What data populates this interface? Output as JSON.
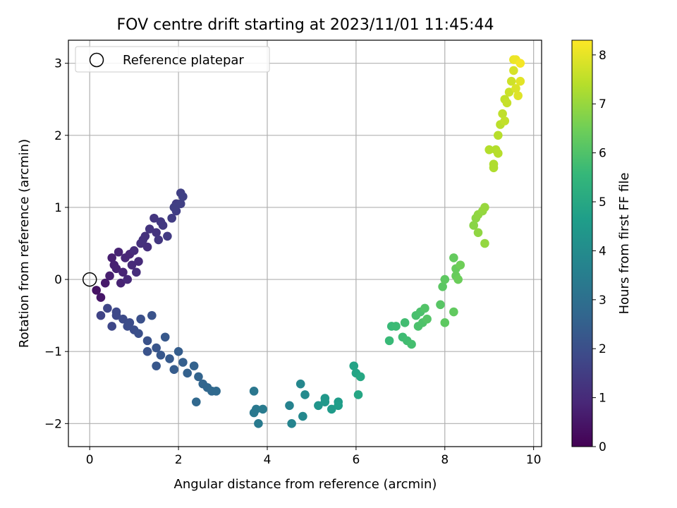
{
  "chart_data": {
    "type": "scatter",
    "title": "FOV centre drift starting at 2023/11/01 11:45:44",
    "xlabel": "Angular distance from reference (arcmin)",
    "ylabel": "Rotation from reference (arcmin)",
    "xlim": [
      -0.48,
      10.18
    ],
    "ylim": [
      -2.32,
      3.32
    ],
    "xticks": [
      0,
      2,
      4,
      6,
      8,
      10
    ],
    "yticks": [
      -2,
      -1,
      0,
      1,
      2,
      3
    ],
    "grid": true,
    "legend": {
      "placement": "top-left",
      "entries": [
        "Reference platepar"
      ]
    },
    "reference_point": {
      "x": 0,
      "y": 0
    },
    "colorbar": {
      "label": "Hours from first FF file",
      "range": [
        0,
        8.3
      ],
      "ticks": [
        0,
        1,
        2,
        3,
        4,
        5,
        6,
        7,
        8
      ],
      "colormap": "viridis"
    },
    "colormap_stops": [
      "#440154",
      "#482878",
      "#3e4989",
      "#31688e",
      "#26828e",
      "#1f9e89",
      "#35b779",
      "#6ece58",
      "#b5de2b",
      "#fde725"
    ],
    "columns": [
      "x",
      "y",
      "hours"
    ],
    "points": [
      [
        0.15,
        -0.15,
        0.4
      ],
      [
        0.25,
        -0.25,
        0.5
      ],
      [
        0.35,
        -0.05,
        0.6
      ],
      [
        0.45,
        0.05,
        0.7
      ],
      [
        0.55,
        0.2,
        0.75
      ],
      [
        0.65,
        0.38,
        0.8
      ],
      [
        0.75,
        0.1,
        0.85
      ],
      [
        0.8,
        0.3,
        0.9
      ],
      [
        0.85,
        0.0,
        0.95
      ],
      [
        0.95,
        0.2,
        1.0
      ],
      [
        1.0,
        0.4,
        1.05
      ],
      [
        1.05,
        0.1,
        1.1
      ],
      [
        1.15,
        0.5,
        1.15
      ],
      [
        1.25,
        0.6,
        1.2
      ],
      [
        1.35,
        0.7,
        1.25
      ],
      [
        1.45,
        0.85,
        1.3
      ],
      [
        1.55,
        0.55,
        1.35
      ],
      [
        1.65,
        0.75,
        1.4
      ],
      [
        1.75,
        0.6,
        1.45
      ],
      [
        1.85,
        0.85,
        1.5
      ],
      [
        1.95,
        0.95,
        1.55
      ],
      [
        2.05,
        1.2,
        1.6
      ],
      [
        2.1,
        1.15,
        1.62
      ],
      [
        1.9,
        1.0,
        1.58
      ],
      [
        2.05,
        1.05,
        1.6
      ],
      [
        0.6,
        0.15,
        0.78
      ],
      [
        0.9,
        0.35,
        0.9
      ],
      [
        1.1,
        0.25,
        1.0
      ],
      [
        1.3,
        0.45,
        1.12
      ],
      [
        1.5,
        0.65,
        1.25
      ],
      [
        0.7,
        -0.05,
        0.8
      ],
      [
        0.5,
        0.3,
        0.72
      ],
      [
        1.2,
        0.55,
        1.18
      ],
      [
        1.6,
        0.8,
        1.38
      ],
      [
        1.95,
        1.05,
        1.52
      ],
      [
        0.25,
        -0.5,
        1.7
      ],
      [
        0.4,
        -0.4,
        1.75
      ],
      [
        0.5,
        -0.65,
        1.8
      ],
      [
        0.6,
        -0.45,
        1.85
      ],
      [
        0.75,
        -0.55,
        1.9
      ],
      [
        0.9,
        -0.6,
        1.95
      ],
      [
        1.0,
        -0.7,
        2.0
      ],
      [
        1.15,
        -0.55,
        2.05
      ],
      [
        1.3,
        -0.85,
        2.1
      ],
      [
        1.4,
        -0.5,
        2.15
      ],
      [
        1.5,
        -0.95,
        2.2
      ],
      [
        1.6,
        -1.05,
        2.25
      ],
      [
        1.7,
        -0.8,
        2.3
      ],
      [
        1.8,
        -1.1,
        2.35
      ],
      [
        1.9,
        -1.25,
        2.4
      ],
      [
        2.0,
        -1.0,
        2.45
      ],
      [
        2.1,
        -1.15,
        2.5
      ],
      [
        2.2,
        -1.3,
        2.55
      ],
      [
        2.35,
        -1.2,
        2.6
      ],
      [
        2.45,
        -1.35,
        2.65
      ],
      [
        2.55,
        -1.45,
        2.7
      ],
      [
        2.65,
        -1.5,
        2.75
      ],
      [
        2.75,
        -1.55,
        2.8
      ],
      [
        2.85,
        -1.55,
        2.85
      ],
      [
        2.4,
        -1.7,
        2.8
      ],
      [
        1.5,
        -1.2,
        2.25
      ],
      [
        1.3,
        -1.0,
        2.15
      ],
      [
        1.1,
        -0.75,
        2.05
      ],
      [
        0.85,
        -0.65,
        1.95
      ],
      [
        0.6,
        -0.5,
        1.85
      ],
      [
        3.7,
        -1.55,
        3.3
      ],
      [
        3.75,
        -1.8,
        3.35
      ],
      [
        3.8,
        -2.0,
        3.4
      ],
      [
        3.9,
        -1.8,
        3.45
      ],
      [
        3.7,
        -1.85,
        3.35
      ],
      [
        4.5,
        -1.75,
        3.7
      ],
      [
        4.55,
        -2.0,
        3.75
      ],
      [
        4.75,
        -1.45,
        3.85
      ],
      [
        4.8,
        -1.9,
        3.9
      ],
      [
        4.85,
        -1.6,
        3.95
      ],
      [
        5.15,
        -1.75,
        4.3
      ],
      [
        5.3,
        -1.7,
        4.4
      ],
      [
        5.45,
        -1.8,
        4.5
      ],
      [
        5.6,
        -1.75,
        4.6
      ],
      [
        5.95,
        -1.2,
        4.8
      ],
      [
        6.0,
        -1.3,
        4.85
      ],
      [
        6.05,
        -1.6,
        4.9
      ],
      [
        6.1,
        -1.35,
        4.95
      ],
      [
        5.3,
        -1.65,
        4.4
      ],
      [
        5.6,
        -1.7,
        4.55
      ],
      [
        6.8,
        -0.65,
        5.6
      ],
      [
        6.9,
        -0.65,
        5.65
      ],
      [
        7.05,
        -0.8,
        5.7
      ],
      [
        7.15,
        -0.85,
        5.75
      ],
      [
        7.25,
        -0.9,
        5.8
      ],
      [
        7.1,
        -0.6,
        5.75
      ],
      [
        7.35,
        -0.5,
        5.85
      ],
      [
        7.45,
        -0.45,
        5.9
      ],
      [
        7.5,
        -0.6,
        5.95
      ],
      [
        7.55,
        -0.4,
        6.0
      ],
      [
        7.6,
        -0.55,
        6.05
      ],
      [
        7.9,
        -0.35,
        6.1
      ],
      [
        7.95,
        -0.1,
        6.15
      ],
      [
        8.0,
        -0.6,
        6.2
      ],
      [
        8.2,
        -0.45,
        6.25
      ],
      [
        8.2,
        0.3,
        6.3
      ],
      [
        8.25,
        0.15,
        6.35
      ],
      [
        8.3,
        0.0,
        6.4
      ],
      [
        8.35,
        0.2,
        6.45
      ],
      [
        8.0,
        0.0,
        6.2
      ],
      [
        6.75,
        -0.85,
        5.6
      ],
      [
        7.4,
        -0.65,
        5.9
      ],
      [
        8.25,
        0.05,
        6.35
      ],
      [
        8.65,
        0.75,
        6.8
      ],
      [
        8.7,
        0.85,
        6.85
      ],
      [
        8.75,
        0.65,
        6.9
      ],
      [
        8.85,
        0.95,
        6.95
      ],
      [
        8.9,
        1.0,
        7.0
      ],
      [
        8.9,
        0.5,
        6.95
      ],
      [
        8.75,
        0.9,
        6.9
      ],
      [
        9.1,
        1.6,
        7.3
      ],
      [
        9.15,
        1.8,
        7.35
      ],
      [
        9.2,
        2.0,
        7.4
      ],
      [
        9.25,
        2.15,
        7.45
      ],
      [
        9.3,
        2.3,
        7.5
      ],
      [
        9.35,
        2.2,
        7.55
      ],
      [
        9.4,
        2.45,
        7.6
      ],
      [
        9.45,
        2.6,
        7.65
      ],
      [
        9.5,
        2.75,
        7.7
      ],
      [
        9.55,
        2.9,
        7.8
      ],
      [
        9.6,
        2.65,
        7.85
      ],
      [
        9.65,
        2.55,
        7.9
      ],
      [
        9.7,
        2.75,
        7.95
      ],
      [
        9.6,
        3.05,
        8.1
      ],
      [
        9.7,
        3.0,
        8.2
      ],
      [
        9.1,
        1.55,
        7.3
      ],
      [
        9.2,
        1.75,
        7.4
      ],
      [
        9.0,
        1.8,
        7.35
      ],
      [
        9.35,
        2.5,
        7.55
      ],
      [
        9.55,
        3.05,
        8.05
      ]
    ]
  }
}
